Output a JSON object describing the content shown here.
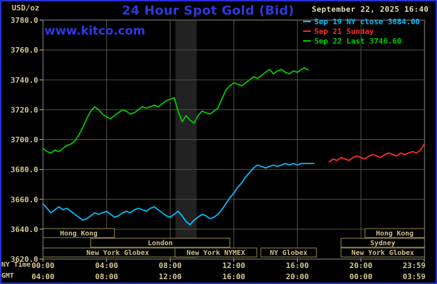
{
  "header": {
    "units": "USD/oz",
    "title": "24 Hour Spot Gold (Bid)",
    "datetime": "September 22, 2025 16:40",
    "watermark": "www.kitco.com"
  },
  "legend": [
    {
      "label": "Sep 19 NY close 3684.00",
      "color": "#00bfff"
    },
    {
      "label": "Sep 21 Sunday",
      "color": "#ff2a2a"
    },
    {
      "label": "Sep 22 Last 3746.60",
      "color": "#00cc00"
    }
  ],
  "axes": {
    "x_ny_label": "NY Time",
    "x_gmt_label": "GMT"
  },
  "theme": {
    "background": "#000000",
    "frame_border": "#2531d8",
    "title_blue": "#2c3ae0",
    "axis": "#d4c694",
    "grid": "#555544",
    "plotBorder": "#8f8f8f",
    "band": "#222222",
    "session": "#9a8d50",
    "sessionText": "#cfc08a"
  },
  "chart_data": {
    "type": "line",
    "title": "24 Hour Spot Gold (Bid)",
    "ylabel": "USD/oz",
    "xlabel": "NY Time / GMT",
    "xlim": [
      0,
      24
    ],
    "ylim": [
      3620,
      3780
    ],
    "y_tick_step": 20,
    "y_ticks": [
      "3780.0",
      "3760.0",
      "3740.0",
      "3720.0",
      "3700.0",
      "3680.0",
      "3660.0",
      "3640.0",
      "3620.0"
    ],
    "x_ticks": [
      {
        "hour": 0,
        "ny": "00:00",
        "gmt": "04:00"
      },
      {
        "hour": 4,
        "ny": "04:00",
        "gmt": "08:00"
      },
      {
        "hour": 8,
        "ny": "08:00",
        "gmt": "12:00"
      },
      {
        "hour": 12,
        "ny": "12:00",
        "gmt": "16:00"
      },
      {
        "hour": 16,
        "ny": "16:00",
        "gmt": "20:00"
      },
      {
        "hour": 20,
        "ny": "20:00",
        "gmt": "00:00"
      },
      {
        "hour": 23.983,
        "ny": "23:59",
        "gmt": "03:59"
      }
    ],
    "shaded_band_hours": [
      8.33,
      9.67
    ],
    "series": [
      {
        "name": "Sep 19 NY close",
        "color": "#00bfff",
        "close": 3684.0,
        "points": [
          [
            0,
            3657
          ],
          [
            0.25,
            3654
          ],
          [
            0.5,
            3651
          ],
          [
            0.75,
            3653
          ],
          [
            1,
            3655
          ],
          [
            1.25,
            3653
          ],
          [
            1.5,
            3654
          ],
          [
            1.75,
            3652
          ],
          [
            2,
            3650
          ],
          [
            2.25,
            3648
          ],
          [
            2.5,
            3646
          ],
          [
            2.75,
            3647
          ],
          [
            3,
            3649
          ],
          [
            3.25,
            3651
          ],
          [
            3.5,
            3650
          ],
          [
            3.75,
            3651
          ],
          [
            4,
            3652
          ],
          [
            4.25,
            3650
          ],
          [
            4.5,
            3648
          ],
          [
            4.75,
            3649
          ],
          [
            5,
            3651
          ],
          [
            5.25,
            3652
          ],
          [
            5.5,
            3651
          ],
          [
            5.75,
            3653
          ],
          [
            6,
            3654
          ],
          [
            6.25,
            3653
          ],
          [
            6.5,
            3652
          ],
          [
            6.75,
            3654
          ],
          [
            7,
            3655
          ],
          [
            7.25,
            3653
          ],
          [
            7.5,
            3651
          ],
          [
            7.75,
            3649
          ],
          [
            8,
            3648
          ],
          [
            8.25,
            3650
          ],
          [
            8.5,
            3652
          ],
          [
            8.75,
            3649
          ],
          [
            9,
            3645
          ],
          [
            9.25,
            3643
          ],
          [
            9.5,
            3646
          ],
          [
            9.75,
            3648
          ],
          [
            10,
            3650
          ],
          [
            10.25,
            3649
          ],
          [
            10.5,
            3647
          ],
          [
            10.75,
            3648
          ],
          [
            11,
            3650
          ],
          [
            11.25,
            3653
          ],
          [
            11.5,
            3657
          ],
          [
            11.75,
            3661
          ],
          [
            12,
            3664
          ],
          [
            12.25,
            3668
          ],
          [
            12.5,
            3671
          ],
          [
            12.75,
            3675
          ],
          [
            13,
            3678
          ],
          [
            13.25,
            3681
          ],
          [
            13.5,
            3683
          ],
          [
            13.75,
            3682
          ],
          [
            14,
            3681
          ],
          [
            14.25,
            3682
          ],
          [
            14.5,
            3683
          ],
          [
            14.75,
            3682
          ],
          [
            15,
            3683
          ],
          [
            15.25,
            3684
          ],
          [
            15.5,
            3683
          ],
          [
            15.75,
            3684
          ],
          [
            16,
            3683
          ],
          [
            16.25,
            3684
          ],
          [
            16.5,
            3684
          ],
          [
            16.75,
            3684
          ],
          [
            17.05,
            3684
          ]
        ]
      },
      {
        "name": "Sep 21 Sunday",
        "color": "#ff2a2a",
        "points": [
          [
            18,
            3685
          ],
          [
            18.25,
            3687
          ],
          [
            18.5,
            3686
          ],
          [
            18.75,
            3688
          ],
          [
            19,
            3687
          ],
          [
            19.25,
            3686
          ],
          [
            19.5,
            3688
          ],
          [
            19.75,
            3689
          ],
          [
            20,
            3688
          ],
          [
            20.25,
            3687
          ],
          [
            20.5,
            3689
          ],
          [
            20.75,
            3690
          ],
          [
            21,
            3689
          ],
          [
            21.25,
            3688
          ],
          [
            21.5,
            3690
          ],
          [
            21.75,
            3691
          ],
          [
            22,
            3690
          ],
          [
            22.25,
            3689
          ],
          [
            22.5,
            3691
          ],
          [
            22.75,
            3690
          ],
          [
            23,
            3691
          ],
          [
            23.25,
            3692
          ],
          [
            23.5,
            3691
          ],
          [
            23.75,
            3693
          ],
          [
            23.98,
            3697
          ]
        ]
      },
      {
        "name": "Sep 22 Last",
        "color": "#00cc00",
        "last": 3746.6,
        "points": [
          [
            0,
            3694
          ],
          [
            0.25,
            3692
          ],
          [
            0.5,
            3691
          ],
          [
            0.75,
            3693
          ],
          [
            1,
            3692
          ],
          [
            1.25,
            3694
          ],
          [
            1.5,
            3696
          ],
          [
            1.75,
            3697
          ],
          [
            2,
            3699
          ],
          [
            2.25,
            3703
          ],
          [
            2.5,
            3708
          ],
          [
            2.75,
            3714
          ],
          [
            3,
            3719
          ],
          [
            3.25,
            3722
          ],
          [
            3.5,
            3720
          ],
          [
            3.75,
            3717
          ],
          [
            4,
            3715
          ],
          [
            4.25,
            3714
          ],
          [
            4.5,
            3716
          ],
          [
            4.75,
            3718
          ],
          [
            5,
            3720
          ],
          [
            5.25,
            3719
          ],
          [
            5.5,
            3717
          ],
          [
            5.75,
            3718
          ],
          [
            6,
            3720
          ],
          [
            6.25,
            3722
          ],
          [
            6.5,
            3721
          ],
          [
            6.75,
            3722
          ],
          [
            7,
            3723
          ],
          [
            7.25,
            3722
          ],
          [
            7.5,
            3724
          ],
          [
            7.75,
            3726
          ],
          [
            8,
            3727
          ],
          [
            8.25,
            3728
          ],
          [
            8.5,
            3719
          ],
          [
            8.75,
            3712
          ],
          [
            9,
            3716
          ],
          [
            9.25,
            3713
          ],
          [
            9.5,
            3711
          ],
          [
            9.75,
            3716
          ],
          [
            10,
            3719
          ],
          [
            10.25,
            3718
          ],
          [
            10.5,
            3717
          ],
          [
            10.75,
            3719
          ],
          [
            11,
            3721
          ],
          [
            11.25,
            3727
          ],
          [
            11.5,
            3733
          ],
          [
            11.75,
            3736
          ],
          [
            12,
            3738
          ],
          [
            12.25,
            3737
          ],
          [
            12.5,
            3736
          ],
          [
            12.75,
            3738
          ],
          [
            13,
            3740
          ],
          [
            13.25,
            3742
          ],
          [
            13.5,
            3741
          ],
          [
            13.75,
            3743
          ],
          [
            14,
            3745
          ],
          [
            14.25,
            3747
          ],
          [
            14.5,
            3744
          ],
          [
            14.75,
            3746
          ],
          [
            15,
            3747
          ],
          [
            15.25,
            3745
          ],
          [
            15.5,
            3744
          ],
          [
            15.75,
            3746
          ],
          [
            16,
            3745
          ],
          [
            16.25,
            3747
          ],
          [
            16.45,
            3748
          ],
          [
            16.67,
            3746.6
          ]
        ]
      }
    ],
    "sessions": [
      {
        "row": 0,
        "label": "Hong Kong",
        "start": 0,
        "end": 4.5
      },
      {
        "row": 0,
        "label": "Hong Kong",
        "start": 20.25,
        "end": 24
      },
      {
        "row": 1,
        "label": "London",
        "start": 3,
        "end": 11.75
      },
      {
        "row": 1,
        "label": "Sydney",
        "start": 18.75,
        "end": 24
      },
      {
        "row": 2,
        "label": "New York Globex",
        "start": 0,
        "end": 9.4
      },
      {
        "row": 2,
        "label": "New York NYMEX",
        "start": 8.3,
        "end": 13.45
      },
      {
        "row": 2,
        "label": "NY Globex",
        "start": 13.7,
        "end": 17.2
      },
      {
        "row": 2,
        "label": "New York Globex",
        "start": 18.75,
        "end": 24
      }
    ]
  }
}
